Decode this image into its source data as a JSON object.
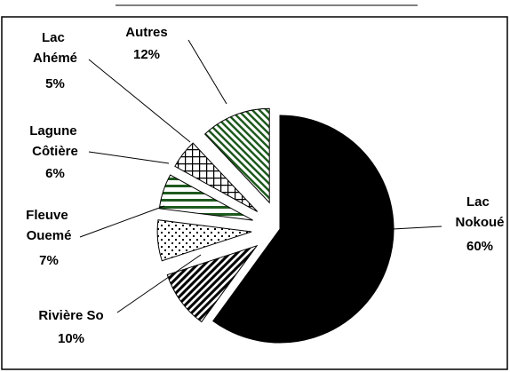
{
  "chart_data": {
    "type": "pie",
    "categories": [
      "Lac Nokoué",
      "Rivière So",
      "Fleuve Ouemé",
      "Lagune Côtière",
      "Lac Ahémé",
      "Autres"
    ],
    "values": [
      60,
      10,
      7,
      6,
      5,
      12
    ],
    "value_labels": [
      "60%",
      "10%",
      "7%",
      "6%",
      "5%",
      "12%"
    ],
    "colors": [
      "#000000",
      "#000000",
      "#000000",
      "#1e5a1e",
      "#000000",
      "#1e5a1e"
    ],
    "legend": false
  }
}
